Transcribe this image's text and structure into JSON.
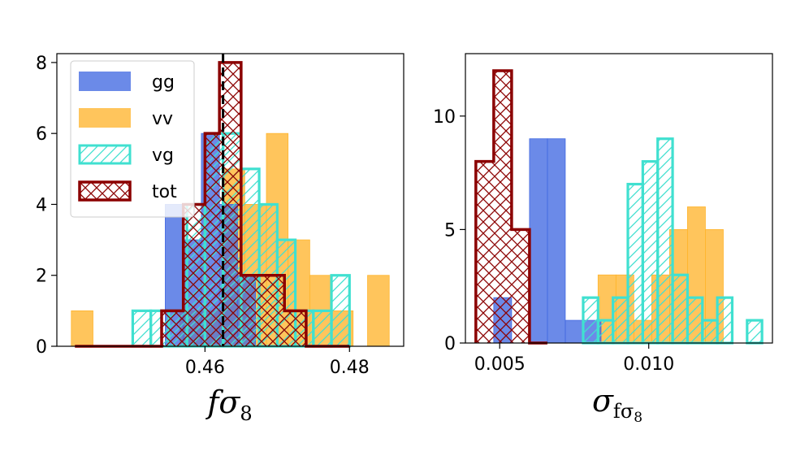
{
  "colors": {
    "gg": "#4169E1",
    "vv": "#FFB52E",
    "vg": "#40E0D0",
    "tot": "#8B0000"
  },
  "chart_data": [
    {
      "type": "histogram",
      "xlabel": {
        "main": "f",
        "greek": "σ",
        "sub": "8"
      },
      "xlim": [
        0.4395,
        0.4875
      ],
      "ylim": [
        0,
        8.25
      ],
      "xticks": [
        {
          "value": 0.46,
          "label": "0.46"
        },
        {
          "value": 0.48,
          "label": "0.48"
        }
      ],
      "yticks": [
        {
          "value": 0,
          "label": "0"
        },
        {
          "value": 2,
          "label": "2"
        },
        {
          "value": 4,
          "label": "4"
        },
        {
          "value": 6,
          "label": "6"
        },
        {
          "value": 8,
          "label": "8"
        }
      ],
      "reference_line": {
        "value": 0.4625,
        "style": "dashed"
      },
      "legend": {
        "position": "upper-left",
        "entries": [
          {
            "key": "gg",
            "label": "gg"
          },
          {
            "key": "vv",
            "label": "vv"
          },
          {
            "key": "vg",
            "label": "vg"
          },
          {
            "key": "tot",
            "label": "tot"
          }
        ]
      },
      "series": [
        {
          "name": "gg",
          "style": "filled",
          "bin_edges": [
            0.4545,
            0.457,
            0.4595,
            0.462,
            0.4645,
            0.467,
            0.4695
          ],
          "counts": [
            4,
            3,
            6,
            4,
            2,
            0
          ]
        },
        {
          "name": "vv",
          "style": "filled",
          "bin_edges": [
            0.4415,
            0.4445,
            0.4475,
            0.4505,
            0.4535,
            0.4565,
            0.4595,
            0.4625,
            0.4655,
            0.4685,
            0.4715,
            0.4745,
            0.4775,
            0.4805,
            0.4825,
            0.4855
          ],
          "counts": [
            1,
            0,
            0,
            0,
            0,
            1,
            1,
            5,
            4,
            6,
            3,
            2,
            1,
            0,
            2
          ]
        },
        {
          "name": "vg",
          "style": "hatched",
          "bin_edges": [
            0.45,
            0.4525,
            0.455,
            0.4575,
            0.46,
            0.4625,
            0.465,
            0.4675,
            0.47,
            0.4725,
            0.475,
            0.4775,
            0.48,
            0.4825
          ],
          "counts": [
            1,
            1,
            1,
            4,
            6,
            6,
            5,
            4,
            3,
            1,
            1,
            2,
            0
          ]
        },
        {
          "name": "tot",
          "style": "step-crosshatch",
          "bin_edges": [
            0.442,
            0.454,
            0.457,
            0.46,
            0.462,
            0.465,
            0.468,
            0.471,
            0.474,
            0.477,
            0.48
          ],
          "counts": [
            0,
            1,
            4,
            6,
            8,
            2,
            2,
            1,
            0,
            0
          ]
        }
      ]
    },
    {
      "type": "histogram",
      "xlabel": {
        "main": "σ",
        "sub_main": "f",
        "sub_greek": "σ",
        "subsub": "8"
      },
      "xlim": [
        0.00385,
        0.01415
      ],
      "ylim": [
        0,
        12.75
      ],
      "xticks": [
        {
          "value": 0.005,
          "label": "0.005"
        },
        {
          "value": 0.01,
          "label": "0.010"
        }
      ],
      "yticks": [
        {
          "value": 0,
          "label": "0"
        },
        {
          "value": 5,
          "label": "5"
        },
        {
          "value": 10,
          "label": "10"
        }
      ],
      "series": [
        {
          "name": "gg",
          "style": "filled",
          "bin_edges": [
            0.0048,
            0.0054,
            0.006,
            0.0066,
            0.0072,
            0.0078,
            0.0084
          ],
          "counts": [
            2,
            0,
            9,
            9,
            1,
            1
          ]
        },
        {
          "name": "vv",
          "style": "filled",
          "bin_edges": [
            0.0083,
            0.0089,
            0.0095,
            0.0101,
            0.0107,
            0.0113,
            0.0119,
            0.0125
          ],
          "counts": [
            3,
            3,
            1,
            3,
            5,
            6,
            5
          ]
        },
        {
          "name": "vg",
          "style": "hatched",
          "bin_edges": [
            0.0078,
            0.0083,
            0.0088,
            0.0093,
            0.0098,
            0.0103,
            0.0108,
            0.0113,
            0.0118,
            0.0123,
            0.0128,
            0.0133,
            0.0138
          ],
          "counts": [
            2,
            1,
            2,
            7,
            8,
            9,
            3,
            2,
            1,
            2,
            0,
            1
          ]
        },
        {
          "name": "tot",
          "style": "step-crosshatch",
          "bin_edges": [
            0.0042,
            0.0048,
            0.0054,
            0.006,
            0.0066
          ],
          "counts": [
            8,
            12,
            5,
            0
          ]
        }
      ]
    }
  ]
}
